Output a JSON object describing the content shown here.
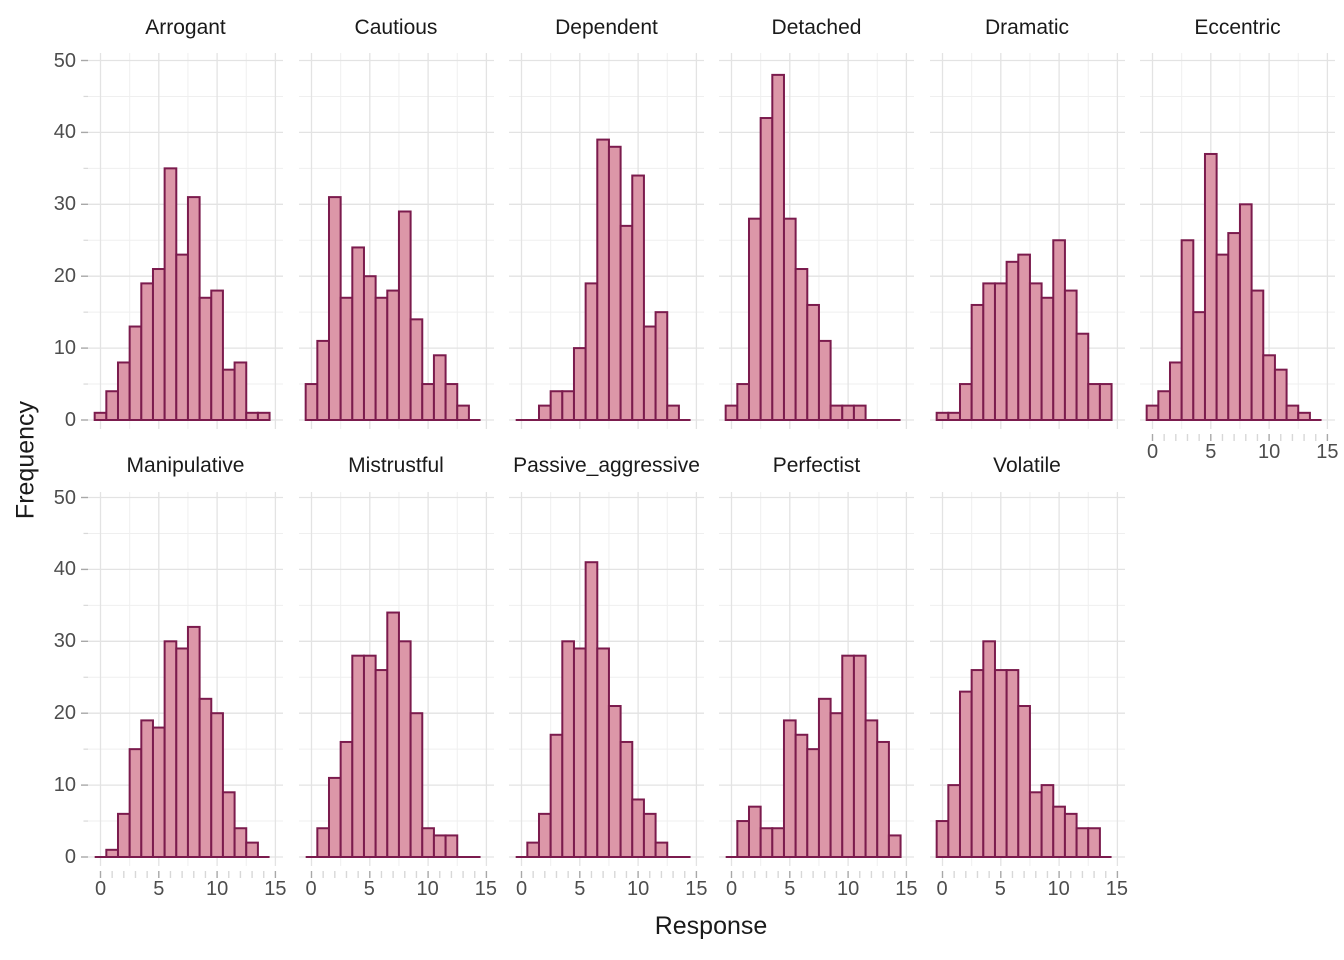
{
  "chart_data": {
    "type": "bar",
    "subtype": "faceted-histogram",
    "xlabel": "Response",
    "ylabel": "Frequency",
    "x_ticks": [
      0,
      5,
      10,
      15
    ],
    "y_ticks": [
      0,
      10,
      20,
      30,
      40,
      50
    ],
    "x_minor": [
      2.5,
      7.5,
      12.5
    ],
    "y_minor": [
      5,
      15,
      25,
      35,
      45
    ],
    "xlim": [
      -1.1,
      15.7
    ],
    "ylim": [
      0,
      50
    ],
    "bin_width": 1,
    "bin_centers_start": 0,
    "grid": "on",
    "legend": "none",
    "facets": [
      {
        "title": "Arrogant",
        "counts": [
          1,
          4,
          8,
          13,
          19,
          21,
          35,
          23,
          31,
          17,
          18,
          7,
          8,
          1,
          1
        ]
      },
      {
        "title": "Cautious",
        "counts": [
          5,
          11,
          31,
          17,
          24,
          20,
          17,
          18,
          29,
          14,
          5,
          9,
          5,
          2,
          0
        ]
      },
      {
        "title": "Dependent",
        "counts": [
          0,
          0,
          2,
          4,
          4,
          10,
          19,
          39,
          38,
          27,
          34,
          13,
          15,
          2,
          0
        ]
      },
      {
        "title": "Detached",
        "counts": [
          2,
          5,
          28,
          42,
          48,
          28,
          21,
          16,
          11,
          2,
          2,
          2,
          0,
          0,
          0
        ]
      },
      {
        "title": "Dramatic",
        "counts": [
          1,
          1,
          5,
          16,
          19,
          19,
          22,
          23,
          19,
          17,
          25,
          18,
          12,
          5,
          5
        ]
      },
      {
        "title": "Eccentric",
        "counts": [
          2,
          4,
          8,
          25,
          15,
          37,
          23,
          26,
          30,
          18,
          9,
          7,
          2,
          1,
          0
        ]
      },
      {
        "title": "Manipulative",
        "counts": [
          0,
          1,
          6,
          15,
          19,
          18,
          30,
          29,
          32,
          22,
          20,
          9,
          4,
          2,
          0
        ]
      },
      {
        "title": "Mistrustful",
        "counts": [
          0,
          4,
          11,
          16,
          28,
          28,
          26,
          34,
          30,
          20,
          4,
          3,
          3,
          0,
          0
        ]
      },
      {
        "title": "Passive_aggressive",
        "counts": [
          0,
          2,
          6,
          17,
          30,
          29,
          41,
          29,
          21,
          16,
          8,
          6,
          2,
          0,
          0
        ]
      },
      {
        "title": "Perfectist",
        "counts": [
          0,
          5,
          7,
          4,
          4,
          19,
          17,
          15,
          22,
          20,
          28,
          28,
          19,
          16,
          3
        ]
      },
      {
        "title": "Volatile",
        "counts": [
          5,
          10,
          23,
          26,
          30,
          26,
          26,
          21,
          9,
          10,
          7,
          6,
          4,
          4,
          0
        ]
      }
    ],
    "style": {
      "bar_fill": "#dc97a8",
      "bar_stroke": "#7b1b4d",
      "grid_major": "#e3e3e3",
      "grid_minor": "#efefef",
      "tick_major": "#a8a8a8",
      "tick_minor": "#d8d8d8",
      "tick_label_color": "#4d4d4d",
      "title_color": "#1a1a1a",
      "background": "#ffffff"
    }
  }
}
